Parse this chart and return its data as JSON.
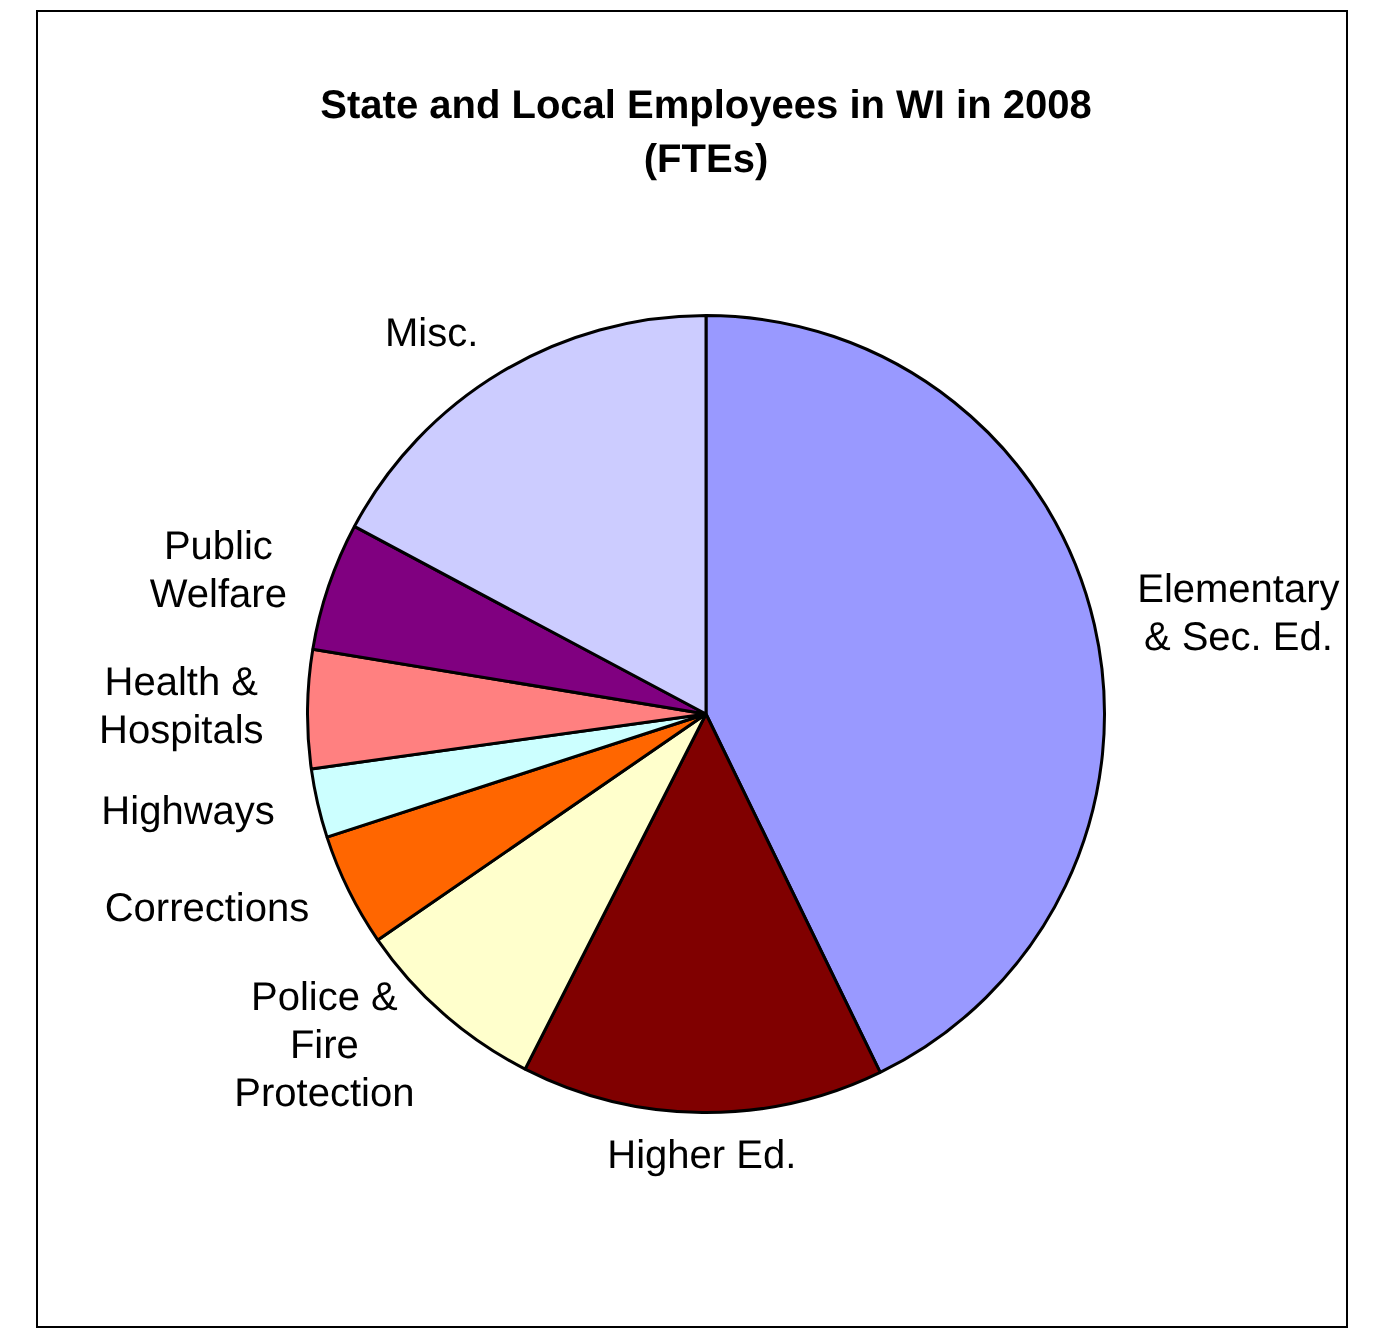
{
  "chart_data": {
    "type": "pie",
    "title": "State and Local Employees in WI in 2008\n(FTEs)",
    "categories": [
      "Elementary\n& Sec. Ed.",
      "Higher Ed.",
      "Police &\nFire\nProtection",
      "Corrections",
      "Highways",
      "Health &\nHospitals",
      "Public\nWelfare",
      "Misc."
    ],
    "values": [
      42.8,
      14.7,
      7.9,
      4.6,
      2.8,
      4.8,
      5.2,
      17.2
    ],
    "colors": [
      "#9999ff",
      "#800000",
      "#ffffcc",
      "#ff6600",
      "#ccffff",
      "#ff8080",
      "#800080",
      "#ccccff"
    ],
    "legend": false
  }
}
